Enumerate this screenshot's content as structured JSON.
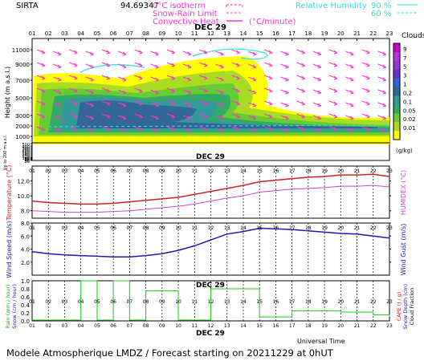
{
  "header": {
    "site": "SIRTA",
    "coords": "94.69347",
    "legend": {
      "isotherm": "0°C isotherm",
      "snow_rain": "Snow-Rain Limit",
      "convective": "Convective Heat",
      "convective_unit": "(°C/minute)",
      "rh_title": "Relative Humidity",
      "rh_90": "90 %",
      "rh_60": "60 %"
    }
  },
  "date_label": "DEC 29",
  "footer": {
    "universal_time": "Universal Time",
    "model_line": "Modele Atmospherique LMDZ / Forecast starting on 20211229 at 0hUT"
  },
  "colors": {
    "temp": "#d02020",
    "humidex": "#cc44cc",
    "wind": "#1a1ab4",
    "precip_line": "#22cc22",
    "magenta": "#ff33cc",
    "cyan": "#33dddd"
  },
  "chart_data": [
    {
      "type": "heatmap",
      "title": "Clouds",
      "ylabel": "Height (m a.s.l.)",
      "ylabel_lower": "Up to 200 m a.s.l.",
      "x_ticks": [
        "01",
        "02",
        "03",
        "04",
        "05",
        "06",
        "07",
        "08",
        "09",
        "10",
        "11",
        "12",
        "13",
        "14",
        "15",
        "16",
        "17",
        "18",
        "19",
        "20",
        "21",
        "22",
        "23"
      ],
      "y_ticks": [
        "11000",
        "9000",
        "7000",
        "5000",
        "3000",
        "2000",
        "1000",
        "500",
        "400",
        "300",
        "200",
        "180",
        "160",
        "140",
        "120",
        "100",
        "80",
        "60",
        "40",
        "20"
      ],
      "colorbar_label": "(g/kg)",
      "colorbar_ticks": [
        "9",
        "7",
        "5",
        "3",
        "1",
        "0.2",
        "0.1",
        "0.05",
        "0.02",
        "0.01"
      ],
      "colorbar_colors": [
        "#cc00cc",
        "#bb33dd",
        "#9933cc",
        "#6633cc",
        "#3366cc",
        "#336699",
        "#339999",
        "#33aa66",
        "#66cc33",
        "#aadd22",
        "#ffff00"
      ]
    },
    {
      "type": "line",
      "ylabel": "Temperature (°C)",
      "ylabel_right": "HUMIDEX (°C)",
      "x_ticks": [
        "01",
        "02",
        "03",
        "04",
        "05",
        "06",
        "07",
        "08",
        "09",
        "10",
        "11",
        "12",
        "13",
        "14",
        "15",
        "16",
        "17",
        "18",
        "19",
        "20",
        "21",
        "22",
        "23"
      ],
      "y_ticks": [
        "12.0",
        "10.0",
        "8.0"
      ],
      "ylim": [
        7,
        14
      ],
      "series": [
        {
          "name": "Temperature",
          "values": [
            9.3,
            9.1,
            9.0,
            8.9,
            8.9,
            9.0,
            9.2,
            9.4,
            9.6,
            9.8,
            10.2,
            10.6,
            11.0,
            11.4,
            11.9,
            12.1,
            12.3,
            12.5,
            12.6,
            12.8,
            12.8,
            12.9,
            12.6
          ]
        },
        {
          "name": "HUMIDEX",
          "values": [
            8.0,
            7.9,
            7.8,
            7.8,
            7.8,
            7.9,
            8.0,
            8.2,
            8.4,
            8.6,
            8.9,
            9.3,
            9.7,
            10.0,
            10.5,
            10.7,
            10.9,
            11.0,
            11.1,
            11.3,
            11.3,
            11.4,
            11.2
          ]
        }
      ]
    },
    {
      "type": "line",
      "ylabel": "Wind Speed (m/s)",
      "ylabel_right": "Wind Gust (m/s)",
      "x_ticks": [
        "01",
        "02",
        "03",
        "04",
        "05",
        "06",
        "07",
        "08",
        "09",
        "10",
        "11",
        "12",
        "13",
        "14",
        "15",
        "16",
        "17",
        "18",
        "19",
        "20",
        "21",
        "22",
        "23"
      ],
      "y_ticks": [
        "8.0",
        "6.0",
        "4.0",
        "2.0"
      ],
      "ylim": [
        0,
        8
      ],
      "series": [
        {
          "name": "Wind Speed",
          "values": [
            3.6,
            3.3,
            3.1,
            3.0,
            2.9,
            2.8,
            2.8,
            3.0,
            3.3,
            3.8,
            4.5,
            5.4,
            6.3,
            6.7,
            7.2,
            7.1,
            7.0,
            6.8,
            6.6,
            6.4,
            6.3,
            6.0,
            5.7
          ]
        }
      ]
    },
    {
      "type": "bar",
      "ylabel": "Rain (mm / hour)",
      "ylabel_2": "Snow (cm / hour)",
      "ylabel_right": "CAPE (J / g)",
      "ylabel_right_2": "Snow Depth (cm)",
      "ylabel_right_3": "Cloud Fraction",
      "x_ticks": [
        "01",
        "02",
        "03",
        "04",
        "05",
        "06",
        "07",
        "08",
        "09",
        "10",
        "11",
        "12",
        "13",
        "14",
        "15",
        "16",
        "17",
        "18",
        "19",
        "20",
        "21",
        "22",
        "23"
      ],
      "y_ticks": [
        "1.0",
        "0.8",
        "0.6",
        "0.4",
        "0.2",
        "0.0"
      ],
      "ylim": [
        0,
        1
      ],
      "series": [
        {
          "name": "Cloud Fraction",
          "values": [
            0.02,
            0.02,
            0.02,
            1.0,
            0.02,
            1.0,
            0.02,
            0.75,
            0.75,
            0.02,
            0.02,
            0.8,
            0.8,
            0.8,
            0.1,
            0.1,
            0.25,
            0.25,
            0.25,
            0.22,
            0.22,
            0.15,
            0.1
          ]
        }
      ]
    }
  ]
}
